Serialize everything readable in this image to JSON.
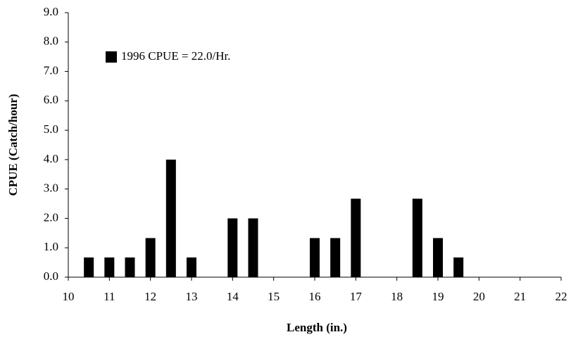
{
  "chart_data": {
    "type": "bar",
    "x_label": "Length (in.)",
    "y_label": "CPUE (Catch/hour)",
    "x": [
      10.5,
      11,
      11.5,
      12,
      12.5,
      13,
      14,
      14.5,
      16,
      16.5,
      17,
      18.5,
      19,
      19.5
    ],
    "series": [
      {
        "name": "1996 CPUE = 22.0/Hr.",
        "color": "#000000",
        "values": [
          0.67,
          0.67,
          0.67,
          1.33,
          4.0,
          0.67,
          2.0,
          2.0,
          1.33,
          1.33,
          2.67,
          2.67,
          1.33,
          0.67
        ]
      }
    ],
    "xlim": [
      10,
      22
    ],
    "xticks": [
      10,
      11,
      12,
      13,
      14,
      15,
      16,
      17,
      18,
      19,
      20,
      21,
      22
    ],
    "ylim": [
      0,
      9
    ],
    "yticks": [
      {
        "value": 0,
        "label": "0.0"
      },
      {
        "value": 1,
        "label": "1.0"
      },
      {
        "value": 2,
        "label": "2.0"
      },
      {
        "value": 3,
        "label": "3.0"
      },
      {
        "value": 4,
        "label": "4.0"
      },
      {
        "value": 5,
        "label": "5.0"
      },
      {
        "value": 6,
        "label": "6.0"
      },
      {
        "value": 7,
        "label": "7.0"
      },
      {
        "value": 8,
        "label": "8.0"
      },
      {
        "value": 9,
        "label": "9.0"
      }
    ],
    "grid": false,
    "legend": "upper left"
  }
}
